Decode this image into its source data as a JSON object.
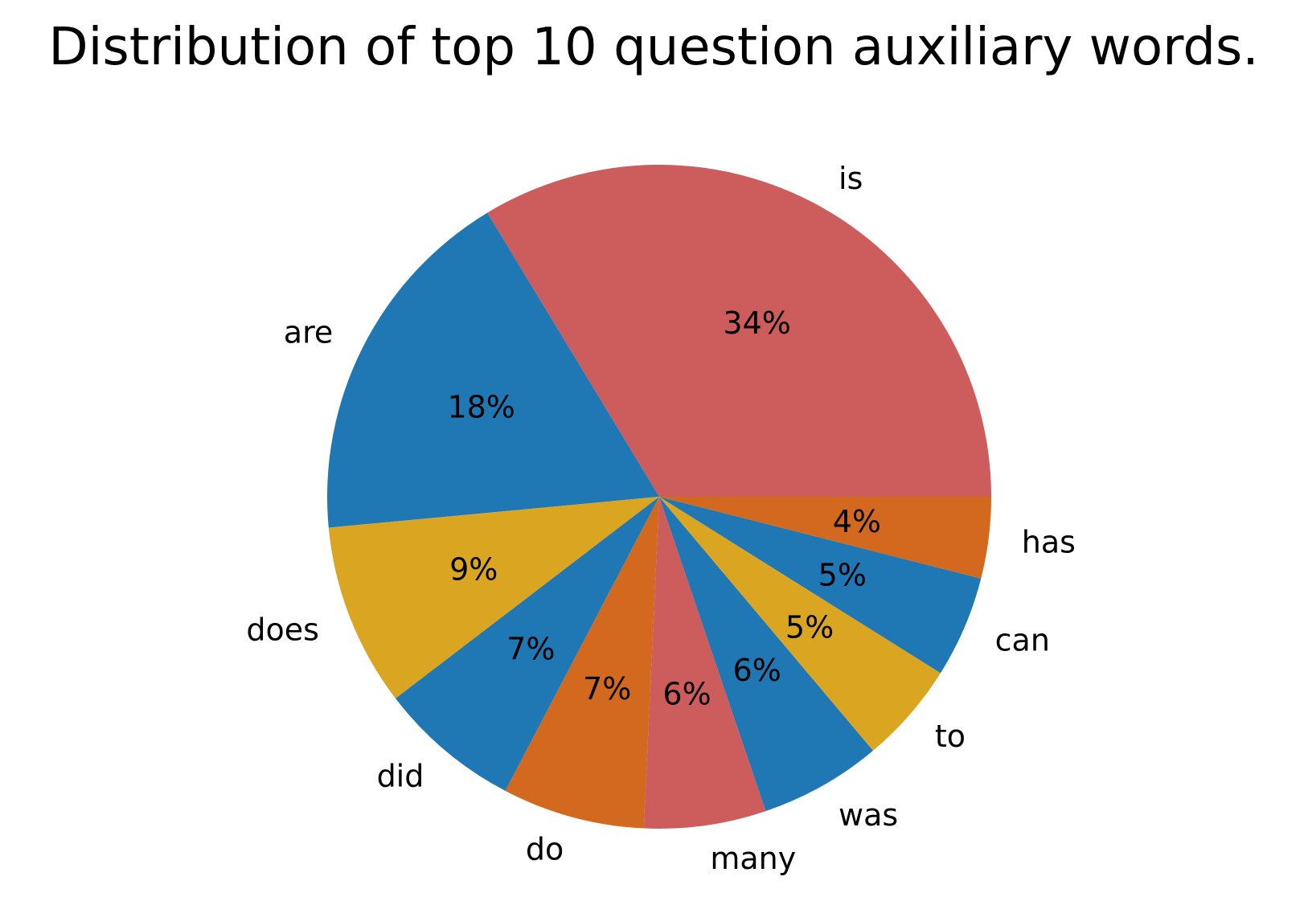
{
  "chart_data": {
    "type": "pie",
    "title": "Distribution of top 10 question auxiliary words.",
    "labels": [
      "is",
      "are",
      "does",
      "did",
      "do",
      "many",
      "was",
      "to",
      "can",
      "has"
    ],
    "values": [
      34,
      18,
      9,
      7,
      7,
      6,
      6,
      5,
      5,
      4
    ],
    "value_labels": [
      "34%",
      "18%",
      "9%",
      "7%",
      "7%",
      "6%",
      "6%",
      "5%",
      "5%",
      "4%"
    ],
    "colors": [
      "#cd5c5c",
      "#1f77b4",
      "#daa520",
      "#1f77b4",
      "#d2691e",
      "#cd5c5c",
      "#1f77b4",
      "#daa520",
      "#1f77b4",
      "#d2691e"
    ],
    "start_angle_deg": 0,
    "direction": "counterclockwise",
    "legend": false
  }
}
